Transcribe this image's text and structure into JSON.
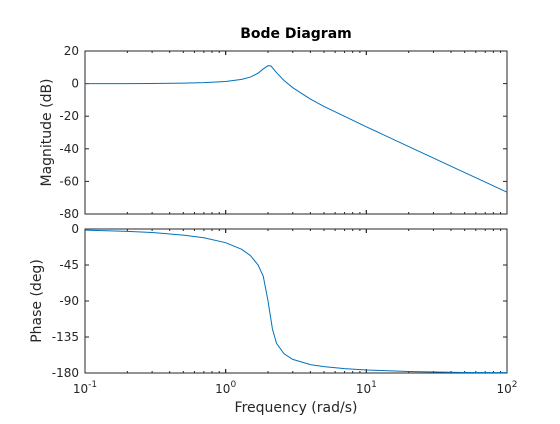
{
  "chart_data": {
    "type": "line",
    "title": "Bode Diagram",
    "xlabel": "Frequency  (rad/s)",
    "x_scale": "log",
    "xlim": [
      0.1,
      100
    ],
    "x_tick_labels": [
      {
        "base": "10",
        "exp": "-1"
      },
      {
        "base": "10",
        "exp": "0"
      },
      {
        "base": "10",
        "exp": "1"
      },
      {
        "base": "10",
        "exp": "2"
      }
    ],
    "line_color": "#0072bd",
    "grid": false,
    "panels": [
      {
        "name": "magnitude",
        "ylabel": "Magnitude (dB)",
        "ylim": [
          -80,
          20
        ],
        "y_ticks": [
          "20",
          "0",
          "-20",
          "-40",
          "-60",
          "-80"
        ],
        "series": [
          {
            "x": [
              0.1,
              0.2,
              0.3,
              0.5,
              0.7,
              1.0,
              1.3,
              1.5,
              1.7,
              1.85,
              2.0,
              2.1,
              2.3,
              2.6,
              3.0,
              4.0,
              5.0,
              7.0,
              10,
              20,
              30,
              50,
              70,
              100
            ],
            "values": [
              0.0,
              0.0,
              0.1,
              0.3,
              0.6,
              1.3,
              2.6,
              4.0,
              6.4,
              9.0,
              11.0,
              10.8,
              6.7,
              1.9,
              -2.5,
              -9.5,
              -14.0,
              -20.1,
              -26.5,
              -38.6,
              -45.7,
              -54.6,
              -60.4,
              -66.6
            ]
          }
        ]
      },
      {
        "name": "phase",
        "ylabel": "Phase (deg)",
        "ylim": [
          -180,
          0
        ],
        "y_ticks": [
          "0",
          "-45",
          "-90",
          "-135",
          "-180"
        ],
        "series": [
          {
            "x": [
              0.1,
              0.2,
              0.3,
              0.5,
              0.7,
              1.0,
              1.3,
              1.5,
              1.7,
              1.85,
              2.0,
              2.15,
              2.3,
              2.6,
              3.0,
              4.0,
              5.0,
              7.0,
              10,
              20,
              50,
              100
            ],
            "values": [
              -1.4,
              -2.9,
              -4.4,
              -7.6,
              -11.0,
              -17.1,
              -25.4,
              -33.2,
              -45.0,
              -59.0,
              -90.0,
              -125.0,
              -143.0,
              -156.0,
              -163.0,
              -169.5,
              -172.0,
              -174.6,
              -176.2,
              -178.1,
              -179.3,
              -179.6
            ]
          }
        ]
      }
    ]
  }
}
